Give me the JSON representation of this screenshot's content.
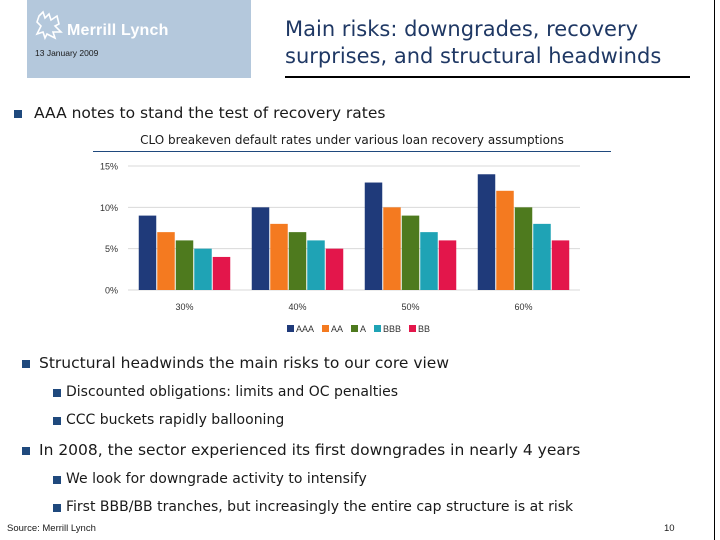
{
  "header": {
    "logo_text": "Merrill Lynch",
    "date": "13 January 2009",
    "title": "Main risks: downgrades, recovery surprises, and structural headwinds"
  },
  "bullets": {
    "b1": "AAA notes to stand the test of recovery rates",
    "b2": "Structural headwinds the main risks to our core view",
    "b2_1": "Discounted obligations: limits and OC penalties",
    "b2_2": "CCC buckets rapidly ballooning",
    "b3": "In 2008, the sector experienced its first downgrades in nearly 4 years",
    "b3_1": "We look for downgrade activity to intensify",
    "b3_2": "First BBB/BB tranches, but increasingly the entire cap structure is at risk"
  },
  "chart_title": "CLO breakeven default rates under various loan recovery assumptions",
  "chart_data": {
    "type": "bar",
    "categories": [
      "30%",
      "40%",
      "50%",
      "60%"
    ],
    "series": [
      {
        "name": "AAA",
        "color": "#1f3a7a",
        "values": [
          9,
          10,
          13,
          14
        ]
      },
      {
        "name": "AA",
        "color": "#f47a20",
        "values": [
          7,
          8,
          10,
          12
        ]
      },
      {
        "name": "A",
        "color": "#4e7a1e",
        "values": [
          6,
          7,
          9,
          10
        ]
      },
      {
        "name": "BBB",
        "color": "#1fa3b5",
        "values": [
          5,
          6,
          7,
          8
        ]
      },
      {
        "name": "BB",
        "color": "#e3164b",
        "values": [
          4,
          5,
          6,
          6
        ]
      }
    ],
    "ylim": [
      0,
      15
    ],
    "yticks": [
      0,
      5,
      10,
      15
    ],
    "ytick_labels": [
      "0%",
      "5%",
      "10%",
      "15%"
    ],
    "grid": true,
    "legend": "bottom"
  },
  "footer": {
    "source": "Source: Merrill Lynch",
    "page": "10"
  },
  "colors": {
    "accent": "#1f497d",
    "logo_bg": "#b4c8dc"
  }
}
